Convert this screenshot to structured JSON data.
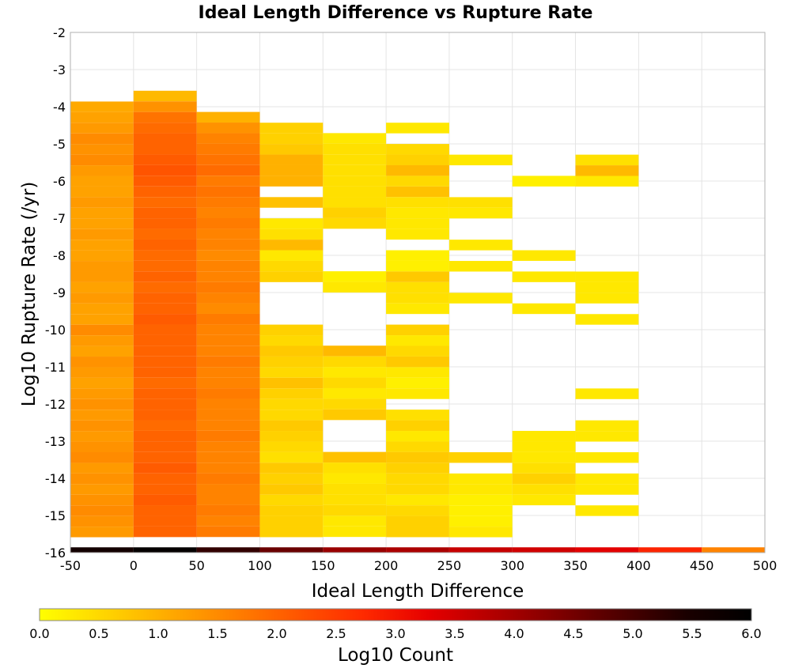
{
  "chart_data": {
    "type": "heatmap",
    "title": "Ideal Length Difference vs Rupture Rate",
    "xlabel": "Ideal Length Difference",
    "ylabel": "Log10 Rupture Rate (/yr)",
    "xlim": [
      -50,
      500
    ],
    "ylim": [
      -16,
      -2
    ],
    "x_ticks": [
      -50,
      0,
      50,
      100,
      150,
      200,
      250,
      300,
      350,
      400,
      450,
      500
    ],
    "y_ticks": [
      -2,
      -3,
      -4,
      -5,
      -6,
      -7,
      -8,
      -9,
      -10,
      -11,
      -12,
      -13,
      -14,
      -15,
      -16
    ],
    "x_bin_width": 50,
    "y_bin_width": 0.286,
    "grid": true,
    "colorbar": {
      "label": "Log10 Count",
      "range": [
        0.0,
        6.0
      ],
      "ticks": [
        "0.0",
        "0.5",
        "1.0",
        "1.5",
        "2.0",
        "2.5",
        "3.0",
        "3.5",
        "4.0",
        "4.5",
        "5.0",
        "5.5",
        "6.0"
      ],
      "colors": [
        "#ffff00",
        "#ffd500",
        "#ffaa00",
        "#ff8000",
        "#ff5500",
        "#ff2a00",
        "#e60000",
        "#b30000",
        "#800000",
        "#4d0000",
        "#1a0000",
        "#000000"
      ]
    },
    "columns": [
      {
        "x_start": -50,
        "y_top": -3.86,
        "values": [
          1.1,
          1.2,
          1.3,
          1.5,
          1.4,
          1.5,
          1.3,
          1.2,
          1.2,
          1.3,
          1.2,
          1.2,
          1.3,
          1.2,
          1.2,
          1.3,
          1.3,
          1.2,
          1.3,
          1.2,
          1.2,
          1.5,
          1.3,
          1.2,
          1.4,
          1.3,
          1.2,
          1.3,
          1.4,
          1.3,
          1.4,
          1.3,
          1.4,
          1.5,
          1.3,
          1.4,
          1.3,
          1.4,
          1.5,
          1.4,
          1.3,
          1.4
        ]
      },
      {
        "x_start": 0,
        "y_top": -3.57,
        "values": [
          0.9,
          1.4,
          1.8,
          1.9,
          2.0,
          2.0,
          2.1,
          2.2,
          2.1,
          2.0,
          1.9,
          2.0,
          2.0,
          1.9,
          2.0,
          1.9,
          1.9,
          2.0,
          1.9,
          2.0,
          2.0,
          2.1,
          2.0,
          2.0,
          2.0,
          2.0,
          2.0,
          1.9,
          2.0,
          2.0,
          2.0,
          1.9,
          2.0,
          2.0,
          2.0,
          2.1,
          2.0,
          2.0,
          2.1,
          2.0,
          2.0,
          2.0,
          2.1
        ]
      },
      {
        "x_start": 50,
        "y_top": -4.14,
        "values": [
          1.0,
          1.4,
          1.6,
          1.7,
          1.8,
          1.9,
          1.7,
          1.8,
          1.7,
          1.6,
          1.7,
          1.6,
          1.6,
          1.5,
          1.6,
          1.6,
          1.7,
          1.6,
          1.5,
          1.7,
          1.6,
          1.6,
          1.6,
          1.7,
          1.6,
          1.6,
          1.7,
          1.6,
          1.6,
          1.6,
          1.7,
          1.6,
          1.6,
          1.6,
          1.7,
          1.6,
          1.6,
          1.7,
          1.6,
          1.7
        ]
      },
      {
        "x_start": 100,
        "y_top": -4.43,
        "values": [
          0.6,
          0.6,
          0.7,
          1.0,
          1.0,
          1.0,
          null,
          0.8,
          null,
          0.3,
          0.4,
          0.9,
          0.3,
          0.5,
          0.6,
          null,
          null,
          null,
          null,
          0.6,
          0.5,
          0.7,
          0.6,
          0.5,
          0.8,
          0.6,
          0.5,
          0.5,
          0.7,
          0.6,
          0.5,
          0.4,
          0.7,
          0.6,
          0.7,
          0.5,
          0.6,
          0.6,
          0.6,
          0.7,
          0.7,
          0.7,
          0.8,
          0.5,
          1.0,
          0.8,
          0.9,
          0.8,
          0.8
        ]
      },
      {
        "x_start": 150,
        "y_top": -4.71,
        "values": [
          0.3,
          0.4,
          0.4,
          0.4,
          0.4,
          0.4,
          0.4,
          0.6,
          0.5,
          null,
          null,
          null,
          null,
          0.2,
          0.3,
          null,
          null,
          null,
          null,
          null,
          0.9,
          0.5,
          0.3,
          0.5,
          0.3,
          0.5,
          0.7,
          null,
          null,
          null,
          0.8,
          0.4,
          0.3,
          0.4,
          0.4,
          0.5,
          0.3,
          0.3,
          0.6,
          0.7,
          0.5,
          0.5,
          0.5,
          0.6,
          0.7,
          0.6
        ]
      },
      {
        "x_start": 200,
        "y_top": -4.43,
        "values": [
          0.3,
          null,
          0.5,
          0.6,
          0.9,
          0.5,
          0.8,
          0.4,
          0.3,
          0.3,
          0.3,
          null,
          0.2,
          0.2,
          0.7,
          0.4,
          0.4,
          0.3,
          null,
          0.6,
          0.3,
          0.5,
          0.7,
          0.3,
          0.2,
          0.3,
          null,
          0.4,
          0.6,
          0.3,
          0.5,
          0.7,
          0.6,
          0.5,
          0.5,
          0.3,
          0.5,
          0.6,
          0.6,
          0.5,
          0.3,
          0.4,
          0.3,
          0.1,
          0.5,
          0.5
        ]
      },
      {
        "x_start": 250,
        "y_top": -5.29,
        "values": [
          0.3,
          null,
          null,
          null,
          0.4,
          0.3,
          null,
          null,
          0.3,
          null,
          0.3,
          null,
          null,
          0.3,
          null,
          null,
          null,
          null,
          null,
          null,
          null,
          null,
          null,
          null,
          null,
          null,
          null,
          null,
          0.6,
          null,
          0.3,
          0.3,
          0.2,
          0.2,
          0.2,
          0.3,
          null,
          0.3,
          null
        ]
      },
      {
        "x_start": 300,
        "y_top": -5.86,
        "values": [
          0.2,
          null,
          null,
          null,
          null,
          null,
          null,
          0.3,
          null,
          0.3,
          null,
          null,
          0.3,
          null,
          null,
          null,
          null,
          null,
          null,
          null,
          null,
          null,
          null,
          null,
          0.3,
          0.3,
          0.3,
          0.4,
          0.6,
          0.4,
          0.3
        ]
      },
      {
        "x_start": 350,
        "y_top": -5.29,
        "values": [
          0.4,
          0.9,
          0.3,
          null,
          null,
          null,
          null,
          null,
          null,
          null,
          null,
          0.3,
          0.3,
          0.3,
          null,
          0.3,
          null,
          null,
          null,
          null,
          null,
          null,
          0.3,
          null,
          null,
          0.3,
          0.3,
          null,
          0.3,
          null,
          0.3,
          0.3,
          null,
          0.3,
          null,
          null,
          null,
          null,
          0.3
        ]
      },
      {
        "x_start": 400,
        "y_top": -15.71,
        "values": []
      },
      {
        "x_start": 450,
        "y_top": -15.71,
        "values": []
      }
    ],
    "bottom_row": {
      "y_start": -16,
      "values": [
        5.6,
        5.9,
        5.2,
        4.6,
        4.1,
        3.9,
        3.6,
        3.5,
        3.3,
        2.8,
        1.6
      ]
    }
  }
}
